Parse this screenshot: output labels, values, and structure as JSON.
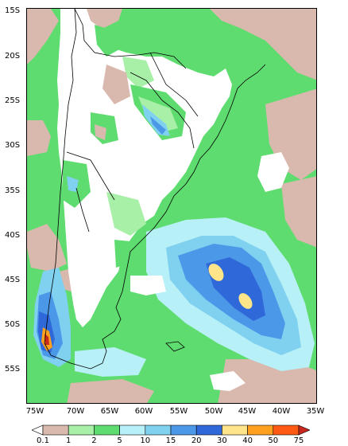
{
  "map": {
    "lat_ticks": [
      "15S",
      "20S",
      "25S",
      "30S",
      "35S",
      "40S",
      "45S",
      "50S",
      "55S"
    ],
    "lon_ticks": [
      "75W",
      "70W",
      "65W",
      "60W",
      "55W",
      "50W",
      "45W",
      "40W",
      "35W"
    ],
    "extent": {
      "lon_min": -77,
      "lon_max": -35,
      "lat_min": -59,
      "lat_max": -15
    }
  },
  "legend": {
    "labels": [
      "0.1",
      "1",
      "2",
      "5",
      "10",
      "15",
      "20",
      "30",
      "40",
      "50",
      "75"
    ],
    "colors": [
      "#ffffff",
      "#d9b8ad",
      "#a8f0a8",
      "#5fdc6f",
      "#b8f0f8",
      "#80d0f0",
      "#4c98e8",
      "#2f68d8",
      "#ffe58a",
      "#ffa01e",
      "#ff5a14",
      "#c8281e"
    ]
  },
  "colors": {
    "background_ocean": "#5fdc6f",
    "land": "#ffffff",
    "coast": "#000000"
  }
}
